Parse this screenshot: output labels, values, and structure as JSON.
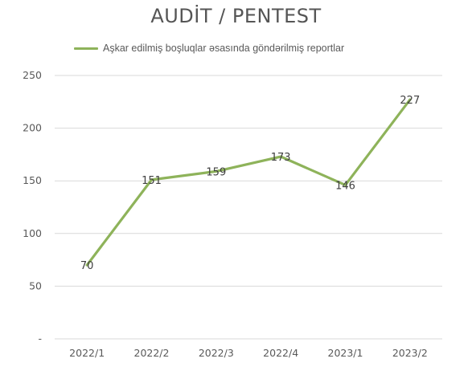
{
  "chart_data": {
    "type": "line",
    "title": "AUDİT / PENTEST",
    "categories": [
      "2022/1",
      "2022/2",
      "2022/3",
      "2022/4",
      "2023/1",
      "2023/2"
    ],
    "series": [
      {
        "name": "Aşkar edilmiş boşluqlar əsasında göndərilmiş reportlar",
        "values": [
          70,
          151,
          159,
          173,
          146,
          227
        ],
        "color": "#8eb35a"
      }
    ],
    "y_ticks": [
      "-",
      "50",
      "100",
      "150",
      "200",
      "250"
    ],
    "ylim": [
      0,
      250
    ],
    "grid": true,
    "legend_position": "top"
  }
}
